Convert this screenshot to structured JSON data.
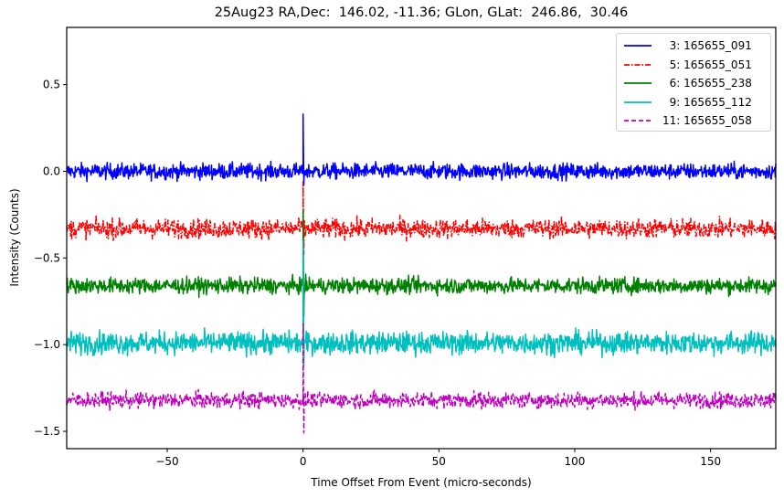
{
  "chart_data": {
    "type": "line",
    "title": "25Aug23 RA,Dec:  146.02, -11.36; GLon, GLat:  246.86,  30.46",
    "xlabel": "Time Offset From Event (micro-seconds)",
    "ylabel": "Intensity (Counts)",
    "xlim": [
      -87,
      174
    ],
    "ylim": [
      -1.6,
      0.83
    ],
    "xticks": [
      -50,
      0,
      50,
      100,
      150
    ],
    "xtick_labels": [
      "−50",
      "0",
      "50",
      "100",
      "150"
    ],
    "yticks": [
      0.5,
      0.0,
      -0.5,
      -1.0,
      -1.5
    ],
    "ytick_labels": [
      "0.5",
      "0.0",
      "−0.5",
      "−1.0",
      "−1.5"
    ],
    "grid": false,
    "legend_position": "upper right",
    "series": [
      {
        "name": "3: 165655_091",
        "color": "#0000ff",
        "linestyle": "solid",
        "baseline": 0.0,
        "noise_amp": 0.05,
        "spike_at": 0,
        "spike_peak": 0.33,
        "spike_min": -0.08
      },
      {
        "name": "5: 165655_051",
        "color": "#ff0000",
        "linestyle": "dashdot",
        "baseline": -0.33,
        "noise_amp": 0.06,
        "spike_at": 0,
        "spike_peak": -0.06,
        "spike_min": -0.48
      },
      {
        "name": "6: 165655_238",
        "color": "#008000",
        "linestyle": "solid",
        "baseline": -0.66,
        "noise_amp": 0.05,
        "spike_at": 0,
        "spike_peak": -0.23,
        "spike_min": -0.84
      },
      {
        "name": "9: 165655_112",
        "color": "#00bfbf",
        "linestyle": "solid",
        "baseline": -0.99,
        "noise_amp": 0.07,
        "spike_at": 0,
        "spike_peak": -0.4,
        "spike_min": -1.12
      },
      {
        "name": "11: 165655_058",
        "color": "#bf00bf",
        "linestyle": "dashed",
        "baseline": -1.32,
        "noise_amp": 0.05,
        "spike_at": 0,
        "spike_peak": -0.88,
        "spike_min": -1.51
      }
    ]
  },
  "legend": {
    "items": [
      {
        "label": "  3: 165655_091",
        "color": "#0000ff",
        "style": "solid"
      },
      {
        "label": "  5: 165655_051",
        "color": "#ff0000",
        "style": "dashdot"
      },
      {
        "label": "  6: 165655_238",
        "color": "#008000",
        "style": "solid"
      },
      {
        "label": "  9: 165655_112",
        "color": "#00bfbf",
        "style": "solid"
      },
      {
        "label": "11: 165655_058",
        "color": "#bf00bf",
        "style": "dashed"
      }
    ]
  }
}
